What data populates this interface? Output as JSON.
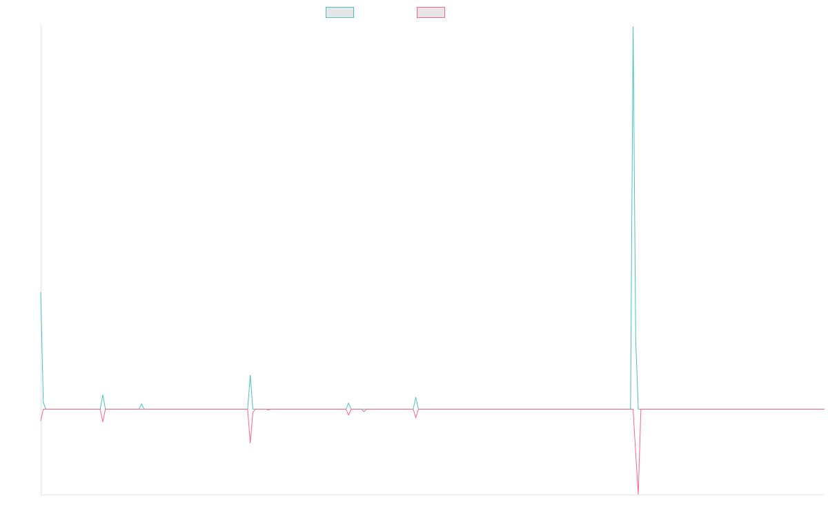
{
  "chart_data": {
    "type": "line",
    "title": "",
    "xlabel": "",
    "ylabel": "",
    "grid": false,
    "legend_position": "top-center",
    "ylim": [
      -100,
      450
    ],
    "x": [
      1,
      2,
      3,
      4,
      5,
      6,
      7,
      8,
      9,
      10,
      11,
      12,
      13,
      14,
      15,
      16,
      17,
      18,
      19,
      20,
      21,
      22,
      23,
      24,
      25,
      26,
      27,
      28,
      29,
      30,
      31,
      32,
      33,
      34,
      35,
      36,
      37,
      38,
      39,
      40,
      41,
      42,
      43,
      44,
      45,
      46,
      47,
      48,
      49,
      50,
      51,
      52,
      53,
      54,
      55,
      56,
      57,
      58,
      59,
      60,
      61,
      62,
      63,
      64,
      65,
      66,
      67,
      68,
      69,
      70,
      71,
      72,
      73,
      74,
      75,
      76,
      77,
      78,
      79,
      80,
      81,
      82,
      83,
      84,
      85,
      86,
      87,
      88,
      89,
      90,
      91,
      92,
      93,
      94,
      95,
      96,
      97,
      98,
      99,
      100,
      101,
      102,
      103,
      104,
      105,
      106,
      107,
      108,
      109,
      110,
      111,
      112,
      113,
      114,
      115,
      116,
      117,
      118,
      119,
      120,
      121,
      122,
      123,
      124,
      125,
      126,
      127,
      128,
      129,
      130,
      131,
      132,
      133,
      134,
      135,
      136,
      137,
      138,
      139,
      140,
      141,
      142,
      143,
      144,
      145,
      146,
      147,
      148,
      149,
      150,
      151,
      152,
      153,
      154,
      155,
      156,
      157,
      158,
      159,
      160,
      161,
      162,
      163,
      164,
      165,
      166,
      167,
      168,
      169,
      170,
      171,
      172,
      173,
      174,
      175,
      176,
      177,
      178,
      179,
      180,
      181,
      182,
      183,
      184,
      185,
      186,
      187,
      188,
      189,
      190,
      191,
      192,
      193,
      194,
      195,
      196,
      197,
      198,
      199,
      200,
      201,
      202,
      203,
      204,
      205,
      206,
      207,
      208,
      209,
      210,
      211,
      212,
      213,
      214,
      215,
      216,
      217,
      218,
      219,
      220,
      221,
      222,
      223,
      224,
      225,
      226,
      227,
      228,
      229,
      230,
      231,
      232,
      233,
      234,
      235,
      236,
      237,
      238,
      239,
      240,
      241,
      242,
      243,
      244,
      245,
      246,
      247,
      248,
      249,
      250,
      251,
      252,
      253,
      254,
      255,
      256,
      257,
      258,
      259,
      260,
      261,
      262,
      263,
      264,
      265,
      266,
      267,
      268,
      269,
      270,
      271,
      272,
      273,
      274,
      275,
      276,
      277,
      278,
      279,
      280,
      281,
      282,
      283,
      284,
      285,
      286,
      287,
      288,
      289,
      290,
      291,
      292,
      293,
      294,
      295,
      296,
      297,
      298,
      299,
      300,
      301,
      302,
      303,
      304
    ],
    "series": [
      {
        "name": "",
        "color": "#4bc0c0",
        "values": [
          137,
          8,
          0,
          0,
          0,
          0,
          0,
          0,
          0,
          0,
          0,
          0,
          0,
          0,
          0,
          0,
          0,
          0,
          0,
          0,
          0,
          0,
          0,
          0,
          17,
          0,
          0,
          0,
          0,
          0,
          0,
          0,
          0,
          0,
          0,
          0,
          0,
          0,
          0,
          6,
          0,
          0,
          0,
          0,
          0,
          0,
          0,
          0,
          0,
          0,
          0,
          0,
          0,
          0,
          0,
          0,
          0,
          0,
          0,
          0,
          0,
          0,
          0,
          0,
          0,
          0,
          0,
          0,
          0,
          0,
          0,
          0,
          0,
          0,
          0,
          0,
          0,
          0,
          0,
          0,
          0,
          40,
          0,
          0,
          0,
          0,
          0,
          0,
          -1,
          0,
          0,
          0,
          0,
          0,
          0,
          0,
          0,
          0,
          0,
          0,
          0,
          0,
          0,
          0,
          0,
          0,
          0,
          0,
          0,
          0,
          0,
          0,
          0,
          0,
          0,
          0,
          0,
          0,
          0,
          7,
          0,
          0,
          0,
          0,
          0,
          0,
          0,
          0,
          0,
          0,
          0,
          0,
          0,
          0,
          0,
          0,
          0,
          0,
          0,
          0,
          0,
          0,
          0,
          0,
          0,
          14,
          0,
          0,
          0,
          0,
          0,
          0,
          0,
          0,
          0,
          0,
          0,
          0,
          0,
          0,
          0,
          0,
          0,
          0,
          0,
          0,
          0,
          0,
          0,
          0,
          0,
          0,
          0,
          0,
          0,
          0,
          0,
          0,
          0,
          0,
          0,
          0,
          0,
          0,
          0,
          0,
          0,
          0,
          0,
          0,
          0,
          0,
          0,
          0,
          0,
          0,
          0,
          0,
          0,
          0,
          0,
          0,
          0,
          0,
          0,
          0,
          0,
          0,
          0,
          0,
          0,
          0,
          0,
          0,
          0,
          0,
          0,
          0,
          0,
          0,
          0,
          0,
          0,
          0,
          0,
          0,
          0,
          0,
          0,
          448,
          82,
          0,
          0,
          0,
          0,
          0,
          0,
          0,
          0,
          0,
          0,
          0,
          0,
          0,
          0,
          0,
          0,
          0,
          0,
          0,
          0,
          0,
          0,
          0,
          0,
          0,
          0,
          0,
          0,
          0,
          0,
          0,
          0,
          0,
          0,
          0,
          0,
          0,
          0,
          0,
          0,
          0,
          0,
          0,
          0,
          0,
          0,
          0,
          0,
          0,
          0,
          0,
          0,
          0,
          0,
          0,
          0,
          0,
          0,
          0,
          0,
          0,
          0,
          0,
          0,
          0,
          0,
          0,
          0,
          0,
          0,
          0,
          0,
          0
        ]
      },
      {
        "name": "",
        "color": "#ff6384",
        "values": [
          -14,
          0,
          0,
          0,
          0,
          0,
          0,
          0,
          0,
          0,
          0,
          0,
          0,
          0,
          0,
          0,
          0,
          0,
          0,
          0,
          0,
          0,
          0,
          0,
          -15,
          0,
          0,
          0,
          0,
          0,
          0,
          0,
          0,
          0,
          0,
          0,
          0,
          0,
          0,
          0,
          0,
          0,
          0,
          0,
          0,
          0,
          0,
          0,
          0,
          0,
          0,
          0,
          0,
          0,
          0,
          0,
          0,
          0,
          0,
          0,
          0,
          0,
          0,
          0,
          0,
          0,
          0,
          0,
          0,
          0,
          0,
          0,
          0,
          0,
          0,
          0,
          0,
          0,
          0,
          0,
          0,
          -40,
          -4,
          0,
          0,
          0,
          0,
          0,
          0,
          0,
          0,
          0,
          0,
          0,
          0,
          0,
          0,
          0,
          0,
          0,
          0,
          0,
          0,
          0,
          0,
          0,
          0,
          0,
          0,
          0,
          0,
          0,
          0,
          0,
          0,
          0,
          0,
          0,
          0,
          -7,
          0,
          0,
          0,
          0,
          0,
          -3,
          0,
          0,
          0,
          0,
          0,
          0,
          0,
          0,
          0,
          0,
          0,
          0,
          0,
          0,
          0,
          0,
          0,
          0,
          0,
          -10,
          0,
          0,
          0,
          0,
          0,
          0,
          0,
          0,
          0,
          0,
          0,
          0,
          0,
          0,
          0,
          0,
          0,
          0,
          0,
          0,
          0,
          0,
          0,
          0,
          0,
          0,
          0,
          0,
          0,
          0,
          0,
          0,
          0,
          0,
          0,
          0,
          0,
          0,
          0,
          0,
          0,
          0,
          0,
          0,
          0,
          0,
          0,
          0,
          0,
          0,
          0,
          0,
          0,
          0,
          0,
          0,
          0,
          0,
          0,
          0,
          0,
          0,
          0,
          0,
          0,
          0,
          0,
          0,
          0,
          0,
          0,
          0,
          0,
          0,
          0,
          0,
          0,
          0,
          0,
          0,
          0,
          0,
          0,
          0,
          -52,
          -100,
          0,
          0,
          0,
          0,
          0,
          0,
          0,
          0,
          0,
          0,
          0,
          0,
          0,
          0,
          0,
          0,
          0,
          0,
          0,
          0,
          0,
          0,
          0,
          0,
          0,
          0,
          0,
          0,
          0,
          0,
          0,
          0,
          0,
          0,
          0,
          0,
          0,
          0,
          0,
          0,
          0,
          0,
          0,
          0,
          0,
          0,
          0,
          0,
          0,
          0,
          0,
          0,
          0,
          0,
          0,
          0,
          0,
          0,
          0,
          0,
          0,
          0,
          0,
          0,
          0,
          0,
          0,
          0,
          0,
          0,
          0,
          0
        ]
      }
    ]
  }
}
